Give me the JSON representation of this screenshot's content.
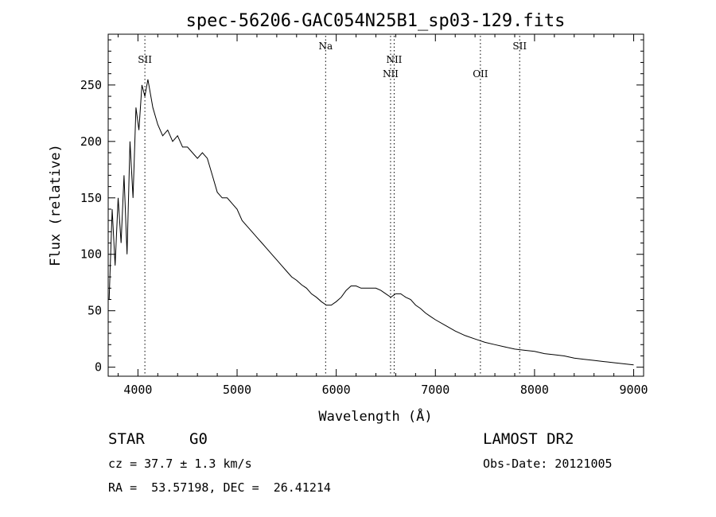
{
  "chart_data": {
    "type": "line",
    "title": "spec-56206-GAC054N25B1_sp03-129.fits",
    "xlabel": "Wavelength (Å)",
    "ylabel": "Flux (relative)",
    "xlim": [
      3700,
      9100
    ],
    "ylim": [
      -8,
      295
    ],
    "x_ticks": [
      4000,
      5000,
      6000,
      7000,
      8000,
      9000
    ],
    "y_ticks": [
      0,
      50,
      100,
      150,
      200,
      250
    ],
    "grid": false,
    "line_color": "#000000",
    "series": [
      {
        "x": [
          3710,
          3740,
          3770,
          3800,
          3830,
          3860,
          3890,
          3920,
          3950,
          3980,
          4010,
          4040,
          4070,
          4100,
          4150,
          4200,
          4250,
          4300,
          4350,
          4400,
          4450,
          4500,
          4550,
          4600,
          4650,
          4700,
          4750,
          4800,
          4850,
          4900,
          4950,
          5000,
          5050,
          5100,
          5150,
          5200,
          5250,
          5300,
          5350,
          5400,
          5450,
          5500,
          5550,
          5600,
          5650,
          5700,
          5750,
          5800,
          5850,
          5900,
          5950,
          6000,
          6050,
          6100,
          6150,
          6200,
          6250,
          6300,
          6350,
          6400,
          6450,
          6500,
          6550,
          6600,
          6650,
          6700,
          6750,
          6800,
          6850,
          6900,
          6950,
          7000,
          7100,
          7200,
          7300,
          7400,
          7500,
          7600,
          7700,
          7800,
          7900,
          8000,
          8100,
          8200,
          8300,
          8400,
          8500,
          8600,
          8700,
          8800,
          8900,
          9000
        ],
        "y": [
          60,
          140,
          90,
          150,
          110,
          170,
          100,
          200,
          150,
          230,
          210,
          250,
          240,
          255,
          230,
          215,
          205,
          210,
          200,
          205,
          195,
          195,
          190,
          185,
          190,
          185,
          170,
          155,
          150,
          150,
          145,
          140,
          130,
          125,
          120,
          115,
          110,
          105,
          100,
          95,
          90,
          85,
          80,
          77,
          73,
          70,
          65,
          62,
          58,
          55,
          55,
          58,
          62,
          68,
          72,
          72,
          70,
          70,
          70,
          70,
          68,
          65,
          62,
          65,
          65,
          62,
          60,
          55,
          52,
          48,
          45,
          42,
          37,
          32,
          28,
          25,
          22,
          20,
          18,
          16,
          15,
          14,
          12,
          11,
          10,
          8,
          7,
          6,
          5,
          4,
          3,
          2
        ]
      }
    ],
    "lines": [
      {
        "label": "SII",
        "x": 4070,
        "label_row": 1
      },
      {
        "label": "Na",
        "x": 5893,
        "label_row": 0
      },
      {
        "label": "NII",
        "x": 6548,
        "label_row": 2
      },
      {
        "label": "NII",
        "x": 6584,
        "label_row": 1
      },
      {
        "label": "OII",
        "x": 7454,
        "label_row": 2
      },
      {
        "label": "SII",
        "x": 7850,
        "label_row": 0
      }
    ]
  },
  "info": {
    "class": "STAR",
    "subclass": "G0",
    "cz": "cz = 37.7 ± 1.3 km/s",
    "coords": "RA =  53.57198, DEC =  26.41214",
    "survey": "LAMOST DR2",
    "obs_date": "Obs-Date: 20121005"
  }
}
